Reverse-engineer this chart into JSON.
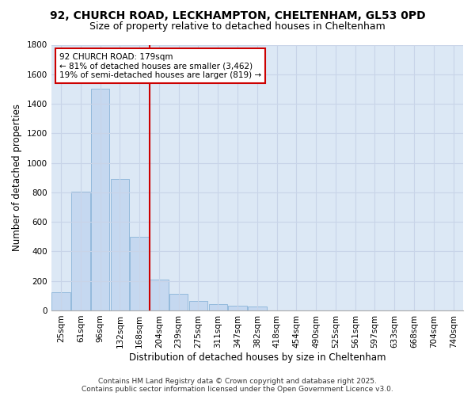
{
  "title_line1": "92, CHURCH ROAD, LECKHAMPTON, CHELTENHAM, GL53 0PD",
  "title_line2": "Size of property relative to detached houses in Cheltenham",
  "xlabel": "Distribution of detached houses by size in Cheltenham",
  "ylabel": "Number of detached properties",
  "categories": [
    "25sqm",
    "61sqm",
    "96sqm",
    "132sqm",
    "168sqm",
    "204sqm",
    "239sqm",
    "275sqm",
    "311sqm",
    "347sqm",
    "382sqm",
    "418sqm",
    "454sqm",
    "490sqm",
    "525sqm",
    "561sqm",
    "597sqm",
    "633sqm",
    "668sqm",
    "704sqm",
    "740sqm"
  ],
  "values": [
    125,
    805,
    1500,
    890,
    500,
    210,
    112,
    65,
    45,
    30,
    25,
    0,
    0,
    0,
    0,
    0,
    0,
    0,
    0,
    0,
    0
  ],
  "bar_color": "#c5d8f0",
  "bar_edge_color": "#8ab4d8",
  "vline_x": 4.5,
  "vline_color": "#cc0000",
  "annotation_text": "92 CHURCH ROAD: 179sqm\n← 81% of detached houses are smaller (3,462)\n19% of semi-detached houses are larger (819) →",
  "annotation_box_color": "#cc0000",
  "ylim": [
    0,
    1800
  ],
  "yticks": [
    0,
    200,
    400,
    600,
    800,
    1000,
    1200,
    1400,
    1600,
    1800
  ],
  "grid_color": "#c8d4e8",
  "fig_bg_color": "#ffffff",
  "plot_bg_color": "#dce8f5",
  "footer_line1": "Contains HM Land Registry data © Crown copyright and database right 2025.",
  "footer_line2": "Contains public sector information licensed under the Open Government Licence v3.0.",
  "title1_fontsize": 10,
  "title2_fontsize": 9,
  "axis_label_fontsize": 8.5,
  "tick_fontsize": 7.5,
  "annotation_fontsize": 7.5,
  "footer_fontsize": 6.5
}
